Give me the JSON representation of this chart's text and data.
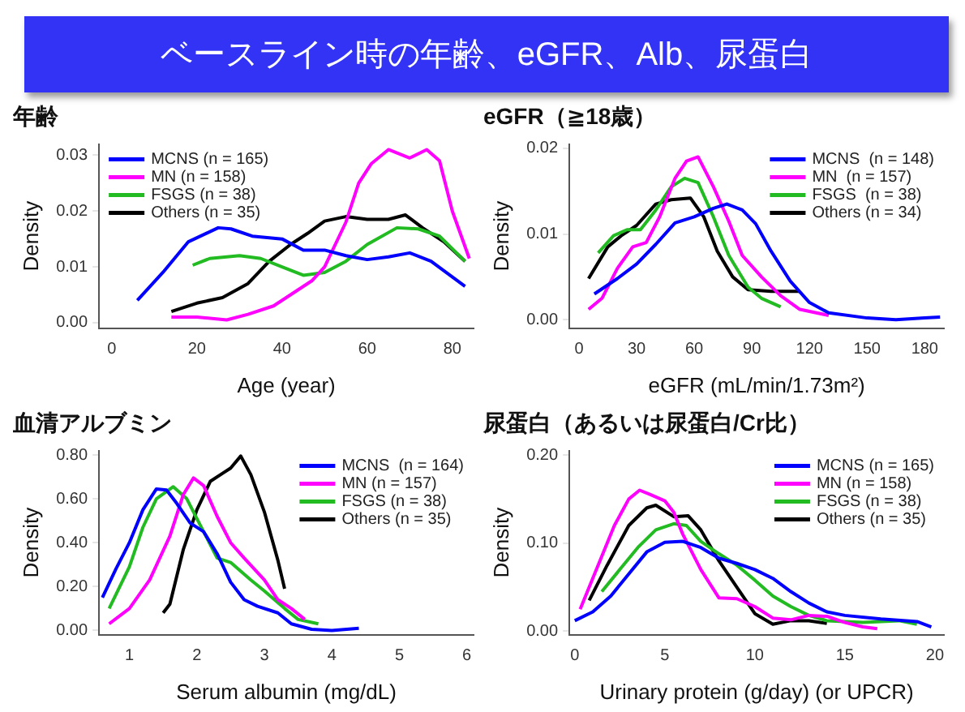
{
  "chart_data": [
    {
      "type": "other",
      "title": "ベースライン時の年齢、eGFR、Alb、尿蛋白"
    },
    {
      "type": "line",
      "title": "年齢",
      "xlabel": "Age (year)",
      "ylabel": "Density",
      "marker": "none",
      "legend": "top left",
      "xlim": [
        -3,
        85
      ],
      "xticks": [
        0,
        20,
        40,
        60,
        80
      ],
      "ylim": [
        -0.001,
        0.032
      ],
      "yticks": [
        {
          "value": 0,
          "label": "0.00"
        },
        {
          "value": 0.01,
          "label": "0.01"
        },
        {
          "value": 0.02,
          "label": "0.02"
        },
        {
          "value": 0.03,
          "label": "0.03"
        }
      ],
      "series": [
        {
          "name": "MCNS (n = 165)",
          "color": "#0000ff",
          "x": [
            6,
            12,
            18,
            25,
            28,
            33,
            40,
            45,
            50,
            55,
            60,
            65,
            70,
            75,
            83
          ],
          "values": [
            0.004,
            0.009,
            0.0145,
            0.017,
            0.0168,
            0.0155,
            0.015,
            0.013,
            0.013,
            0.012,
            0.0113,
            0.0118,
            0.0125,
            0.011,
            0.0065
          ]
        },
        {
          "name": "MN (n = 158)",
          "color": "#ff00ff",
          "x": [
            14,
            20,
            27,
            32,
            38,
            42,
            47,
            50,
            55,
            58,
            61,
            65,
            70,
            74,
            77,
            80,
            84
          ],
          "values": [
            0.001,
            0.001,
            0.0005,
            0.0015,
            0.003,
            0.005,
            0.0075,
            0.01,
            0.018,
            0.025,
            0.0285,
            0.031,
            0.0295,
            0.031,
            0.029,
            0.02,
            0.0115
          ]
        },
        {
          "name": "FSGS (n = 38)",
          "color": "#22bb22",
          "x": [
            19,
            23,
            30,
            35,
            40,
            45,
            50,
            55,
            60,
            67,
            72,
            77,
            83
          ],
          "values": [
            0.0103,
            0.0115,
            0.012,
            0.0115,
            0.01,
            0.0085,
            0.009,
            0.011,
            0.014,
            0.017,
            0.0168,
            0.0155,
            0.011
          ]
        },
        {
          "name": "Others (n = 35)",
          "color": "#000000",
          "x": [
            14,
            20,
            26,
            32,
            37,
            42,
            46,
            50,
            55,
            60,
            65,
            69,
            73,
            78,
            83
          ],
          "values": [
            0.002,
            0.0035,
            0.0045,
            0.007,
            0.011,
            0.014,
            0.016,
            0.0182,
            0.019,
            0.0185,
            0.0185,
            0.0193,
            0.017,
            0.0145,
            0.011
          ]
        }
      ]
    },
    {
      "type": "line",
      "title": "eGFR（≧18歳）",
      "xlabel": "eGFR (mL/min/1.73m²)",
      "ylabel": "Density",
      "marker": "none",
      "legend": "top right",
      "xlim": [
        -5,
        190
      ],
      "xticks": [
        0,
        30,
        60,
        90,
        120,
        150,
        180
      ],
      "ylim": [
        -0.001,
        0.0205
      ],
      "yticks": [
        {
          "value": 0,
          "label": "0.00"
        },
        {
          "value": 0.01,
          "label": "0.01"
        },
        {
          "value": 0.02,
          "label": "0.02"
        }
      ],
      "series": [
        {
          "name": "MCNS  (n = 148)",
          "color": "#0000ff",
          "x": [
            8,
            20,
            30,
            40,
            50,
            60,
            70,
            77,
            85,
            92,
            100,
            110,
            120,
            130,
            150,
            165,
            180,
            188
          ],
          "values": [
            0.003,
            0.0048,
            0.0065,
            0.0088,
            0.0113,
            0.012,
            0.013,
            0.0135,
            0.0128,
            0.0112,
            0.008,
            0.0045,
            0.002,
            0.0008,
            0.0002,
            0,
            0.0002,
            0.0003
          ]
        },
        {
          "name": "MN  (n = 157)",
          "color": "#ff00ff",
          "x": [
            5,
            12,
            20,
            28,
            35,
            42,
            50,
            56,
            62,
            70,
            78,
            85,
            95,
            105,
            115,
            130
          ],
          "values": [
            0.0012,
            0.0025,
            0.006,
            0.0085,
            0.009,
            0.012,
            0.0165,
            0.0185,
            0.019,
            0.0155,
            0.0115,
            0.0075,
            0.005,
            0.0028,
            0.0012,
            0.0005
          ]
        },
        {
          "name": "FSGS  (n = 38)",
          "color": "#22bb22",
          "x": [
            10,
            18,
            25,
            32,
            40,
            48,
            55,
            62,
            70,
            78,
            88,
            95,
            105
          ],
          "values": [
            0.0078,
            0.0098,
            0.0105,
            0.0105,
            0.0128,
            0.0155,
            0.0165,
            0.016,
            0.012,
            0.0075,
            0.0038,
            0.0025,
            0.0015
          ]
        },
        {
          "name": "Others (n = 34)",
          "color": "#000000",
          "x": [
            5,
            15,
            22,
            30,
            40,
            48,
            58,
            65,
            72,
            80,
            88,
            100,
            115
          ],
          "values": [
            0.0048,
            0.0085,
            0.0098,
            0.011,
            0.0135,
            0.014,
            0.0142,
            0.012,
            0.008,
            0.005,
            0.0035,
            0.0033,
            0.0033
          ]
        }
      ]
    },
    {
      "type": "line",
      "title": "血清アルブミン",
      "xlabel": "Serum albumin (mg/dL)",
      "ylabel": "Density",
      "marker": "none",
      "legend": "top right",
      "xlim": [
        0.55,
        6.1
      ],
      "xticks": [
        1,
        2,
        3,
        4,
        5,
        6
      ],
      "ylim": [
        -0.02,
        0.82
      ],
      "yticks": [
        {
          "value": 0,
          "label": "0.00"
        },
        {
          "value": 0.2,
          "label": "0.20"
        },
        {
          "value": 0.4,
          "label": "0.40"
        },
        {
          "value": 0.6,
          "label": "0.60"
        },
        {
          "value": 0.8,
          "label": "0.80"
        }
      ],
      "series": [
        {
          "name": "MCNS  (n = 164)",
          "color": "#0000ff",
          "x": [
            0.6,
            0.8,
            1.0,
            1.2,
            1.4,
            1.55,
            1.7,
            1.9,
            2.1,
            2.3,
            2.5,
            2.7,
            2.9,
            3.2,
            3.4,
            3.7,
            4.0,
            4.4
          ],
          "values": [
            0.15,
            0.28,
            0.4,
            0.55,
            0.645,
            0.64,
            0.58,
            0.49,
            0.45,
            0.35,
            0.22,
            0.14,
            0.11,
            0.08,
            0.03,
            0.005,
            0,
            0.01
          ]
        },
        {
          "name": "MN (n = 157)",
          "color": "#ff00ff",
          "x": [
            0.7,
            1.0,
            1.3,
            1.6,
            1.8,
            1.95,
            2.1,
            2.3,
            2.5,
            2.7,
            3.0,
            3.2,
            3.4,
            3.6
          ],
          "values": [
            0.03,
            0.1,
            0.23,
            0.43,
            0.62,
            0.695,
            0.66,
            0.52,
            0.4,
            0.33,
            0.23,
            0.14,
            0.1,
            0.05
          ]
        },
        {
          "name": "FSGS (n = 38)",
          "color": "#22bb22",
          "x": [
            0.7,
            1.0,
            1.2,
            1.4,
            1.65,
            1.85,
            2.05,
            2.3,
            2.5,
            2.8,
            3.0,
            3.3,
            3.5,
            3.8
          ],
          "values": [
            0.1,
            0.29,
            0.47,
            0.6,
            0.655,
            0.6,
            0.48,
            0.33,
            0.31,
            0.23,
            0.18,
            0.1,
            0.05,
            0.03
          ]
        },
        {
          "name": "Others (n = 35)",
          "color": "#000000",
          "x": [
            1.5,
            1.6,
            1.8,
            2.0,
            2.2,
            2.4,
            2.5,
            2.65,
            2.8,
            3.0,
            3.2,
            3.3
          ],
          "values": [
            0.08,
            0.12,
            0.37,
            0.55,
            0.68,
            0.72,
            0.74,
            0.795,
            0.71,
            0.54,
            0.32,
            0.19
          ]
        }
      ]
    },
    {
      "type": "line",
      "title": "尿蛋白（あるいは尿蛋白/Cr比）",
      "xlabel": "Urinary protein (g/day) (or UPCR)",
      "ylabel": "Density",
      "marker": "none",
      "legend": "top right",
      "xlim": [
        -0.3,
        20.5
      ],
      "xticks": [
        0,
        5,
        10,
        15,
        20
      ],
      "ylim": [
        -0.004,
        0.205
      ],
      "yticks": [
        {
          "value": 0,
          "label": "0.00"
        },
        {
          "value": 0.1,
          "label": "0.10"
        },
        {
          "value": 0.2,
          "label": "0.20"
        }
      ],
      "series": [
        {
          "name": "MCNS (n = 165)",
          "color": "#0000ff",
          "x": [
            0,
            1,
            2,
            3,
            4,
            5,
            6,
            7,
            8,
            9,
            10,
            11,
            12,
            13,
            14,
            15,
            17,
            19,
            19.8
          ],
          "values": [
            0.012,
            0.022,
            0.04,
            0.065,
            0.09,
            0.101,
            0.102,
            0.095,
            0.083,
            0.077,
            0.07,
            0.06,
            0.045,
            0.032,
            0.022,
            0.018,
            0.014,
            0.011,
            0.005
          ]
        },
        {
          "name": "MN (n = 158)",
          "color": "#ff00ff",
          "x": [
            0.3,
            1.2,
            2.2,
            3,
            3.6,
            4.2,
            5,
            5.5,
            6,
            7,
            8,
            9,
            10,
            11,
            12,
            13,
            14,
            15,
            16,
            16.8
          ],
          "values": [
            0.025,
            0.07,
            0.12,
            0.15,
            0.16,
            0.155,
            0.148,
            0.135,
            0.11,
            0.07,
            0.038,
            0.037,
            0.028,
            0.015,
            0.013,
            0.018,
            0.017,
            0.01,
            0.005,
            0.003
          ]
        },
        {
          "name": "FSGS (n = 38)",
          "color": "#22bb22",
          "x": [
            1.5,
            2.5,
            3.5,
            4.5,
            5.5,
            6.2,
            7,
            8,
            9,
            10,
            11,
            12,
            13,
            14,
            16,
            18,
            19
          ],
          "values": [
            0.045,
            0.07,
            0.095,
            0.115,
            0.122,
            0.12,
            0.102,
            0.088,
            0.075,
            0.058,
            0.04,
            0.028,
            0.018,
            0.012,
            0.01,
            0.012,
            0.008
          ]
        },
        {
          "name": "Others (n = 35)",
          "color": "#000000",
          "x": [
            0.8,
            1.8,
            3,
            4,
            4.5,
            5.5,
            6.3,
            7,
            8,
            9,
            10,
            11,
            12,
            13,
            14
          ],
          "values": [
            0.035,
            0.075,
            0.12,
            0.14,
            0.143,
            0.13,
            0.131,
            0.115,
            0.08,
            0.05,
            0.02,
            0.008,
            0.012,
            0.012,
            0.009
          ]
        }
      ]
    }
  ]
}
